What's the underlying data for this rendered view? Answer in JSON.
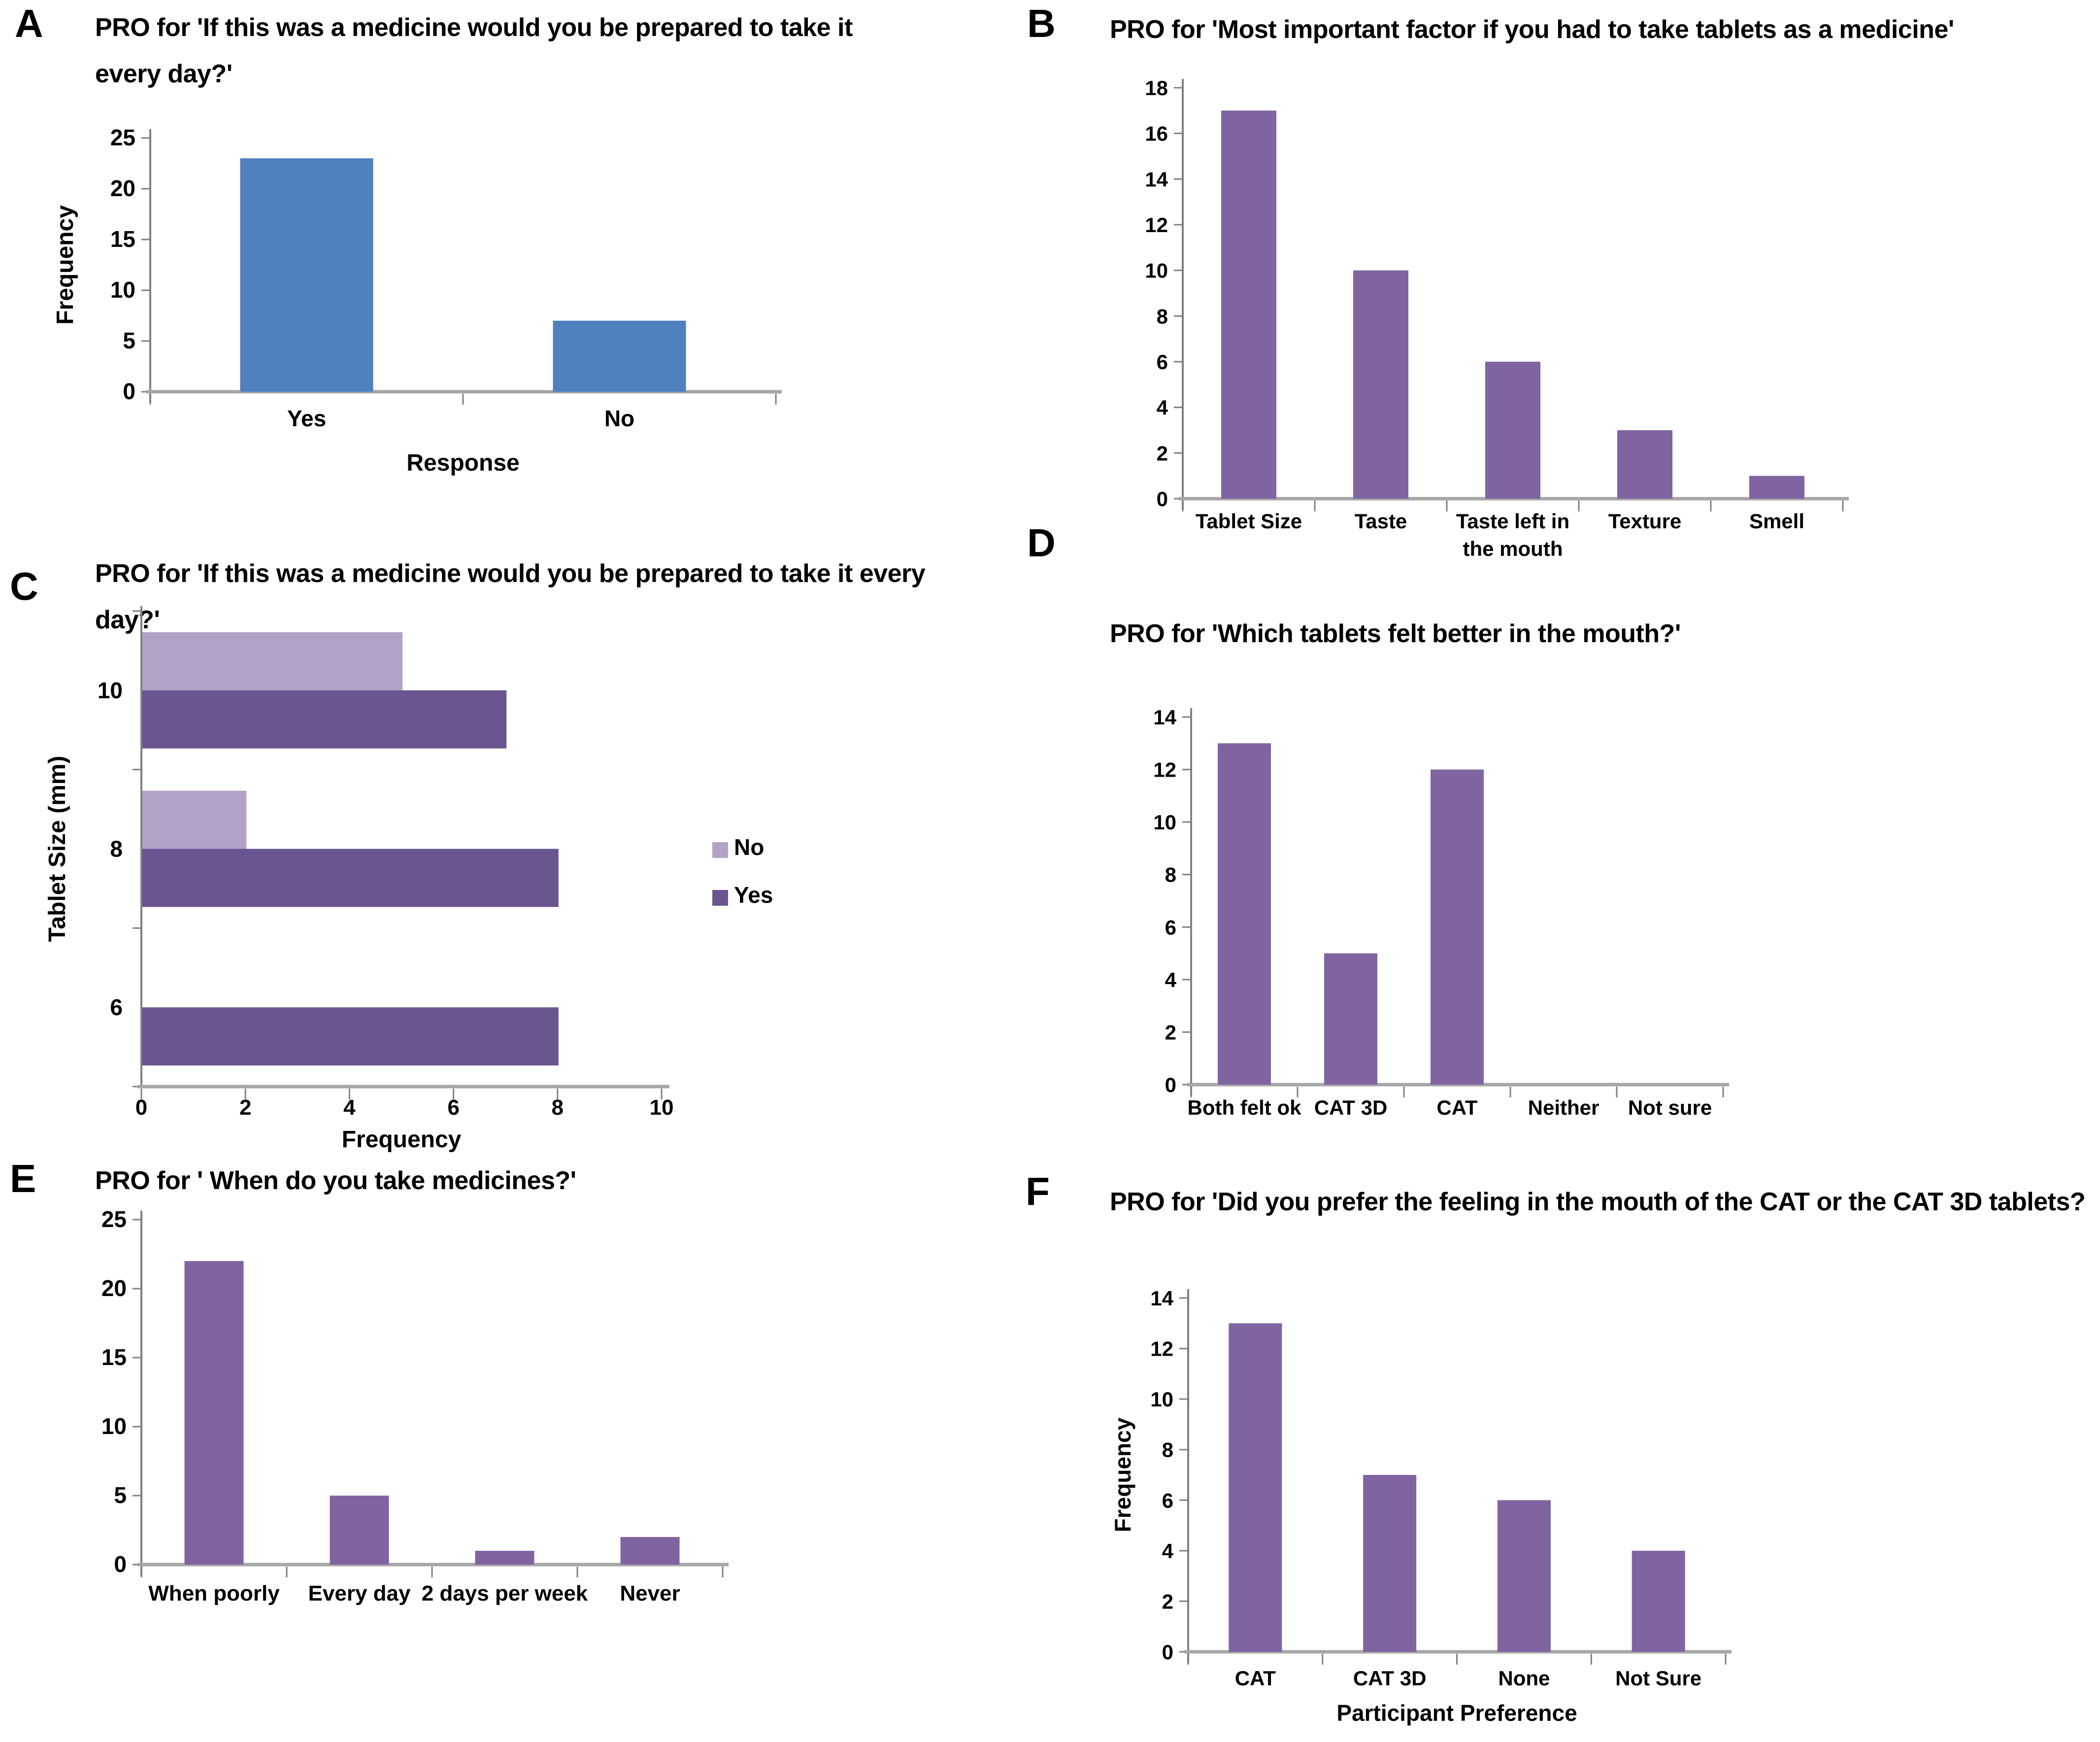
{
  "figure_background": "#FFFFFF",
  "panel_letters": [
    "A",
    "B",
    "C",
    "D",
    "E",
    "F"
  ],
  "colors": {
    "blue": "#4E81BD",
    "purple": "#8064A2",
    "light_purple": "#B2A2C7",
    "dark_purple": "#6A5590",
    "value_axis": "#808080",
    "baseline_axis": "#A6A6A6",
    "text": "#000000"
  },
  "chart_data": [
    {
      "panel": "A",
      "type": "bar",
      "title": "PRO for 'If this was a medicine would you be prepared to take it every day?'",
      "categories": [
        "Yes",
        "No"
      ],
      "values": [
        23,
        7
      ],
      "xlabel": "Response",
      "ylabel": "Frequency",
      "ylim": [
        0,
        25
      ],
      "ytick": 5,
      "grid": false,
      "legend_position": "none",
      "bar_color": "blue"
    },
    {
      "panel": "B",
      "type": "bar",
      "title": "PRO for 'Most important factor if you had to take tablets as a medicine'",
      "categories": [
        "Tablet Size",
        "Taste",
        "Taste left in\nthe mouth",
        "Texture",
        "Smell"
      ],
      "values": [
        17,
        10,
        6,
        3,
        1
      ],
      "xlabel": "",
      "ylabel": "",
      "ylim": [
        0,
        18
      ],
      "ytick": 2,
      "grid": false,
      "legend_position": "none",
      "bar_color": "purple"
    },
    {
      "panel": "C",
      "type": "bar-horizontal",
      "title": "PRO for 'If this was a medicine would you be prepared to take it every day?'",
      "categories": [
        "10",
        "8",
        "6"
      ],
      "series": [
        {
          "name": "No",
          "values": [
            5,
            2,
            0
          ],
          "color": "light_purple"
        },
        {
          "name": "Yes",
          "values": [
            7,
            8,
            8
          ],
          "color": "dark_purple"
        }
      ],
      "xlabel": "Frequency",
      "ylabel": "Tablet Size (mm)",
      "xlim": [
        0,
        10
      ],
      "xtick": 2,
      "grid": false,
      "legend_position": "right"
    },
    {
      "panel": "D",
      "type": "bar",
      "title": "PRO for 'Which tablets felt better in the mouth?'",
      "categories": [
        "Both felt ok",
        "CAT 3D",
        "CAT",
        "Neither",
        "Not sure"
      ],
      "values": [
        13,
        5,
        12,
        0,
        0
      ],
      "xlabel": "",
      "ylabel": "",
      "ylim": [
        0,
        14
      ],
      "ytick": 2,
      "grid": false,
      "legend_position": "none",
      "bar_color": "purple"
    },
    {
      "panel": "E",
      "type": "bar",
      "title": "PRO for ' When do you take medicines?'",
      "categories": [
        "When poorly",
        "Every day",
        "2 days per week",
        "Never"
      ],
      "values": [
        22,
        5,
        1,
        2
      ],
      "xlabel": "",
      "ylabel": "",
      "ylim": [
        0,
        25
      ],
      "ytick": 5,
      "grid": false,
      "legend_position": "none",
      "bar_color": "purple"
    },
    {
      "panel": "F",
      "type": "bar",
      "title": "PRO for 'Did you prefer the feeling in the mouth of the CAT or the CAT 3D tablets?",
      "categories": [
        "CAT",
        "CAT 3D",
        "None",
        "Not Sure"
      ],
      "values": [
        13,
        7,
        6,
        4
      ],
      "xlabel": "Participant Preference",
      "ylabel": "Frequency",
      "ylim": [
        0,
        14
      ],
      "ytick": 2,
      "grid": false,
      "legend_position": "none",
      "bar_color": "purple"
    }
  ]
}
